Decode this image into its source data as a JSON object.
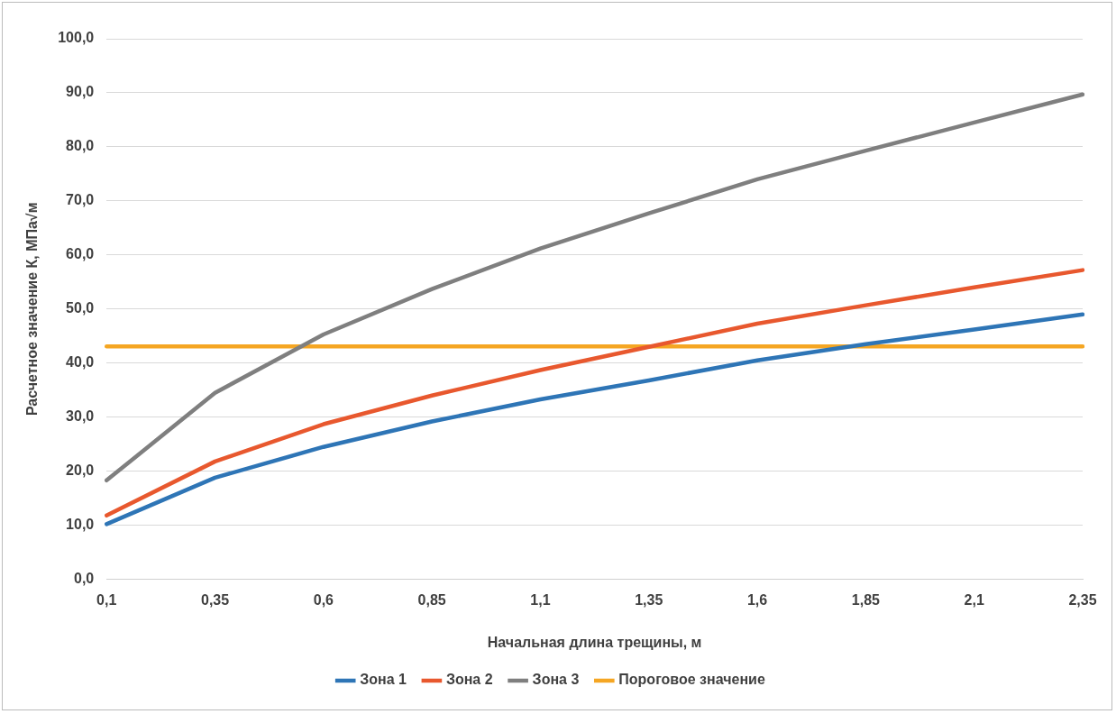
{
  "chart_data": {
    "type": "line",
    "xlabel": "Начальная длина трещины, м",
    "ylabel": "Расчетное значение К, МПа√м",
    "categories": [
      "0,1",
      "0,35",
      "0,6",
      "0,85",
      "1,1",
      "1,35",
      "1,6",
      "1,85",
      "2,1",
      "2,35"
    ],
    "series": [
      {
        "name": "Зона 1",
        "color": "#2e75b6",
        "values": [
          10.2,
          18.8,
          24.5,
          29.2,
          33.3,
          36.8,
          40.5,
          43.5,
          46.2,
          49.0
        ]
      },
      {
        "name": "Зона 2",
        "color": "#e8582e",
        "values": [
          11.8,
          21.8,
          28.7,
          34.0,
          38.7,
          43.0,
          47.3,
          50.7,
          54.0,
          57.2
        ]
      },
      {
        "name": "Зона 3",
        "color": "#7f7f7f",
        "values": [
          18.3,
          34.5,
          45.3,
          53.7,
          61.2,
          67.7,
          74.0,
          79.3,
          84.5,
          89.7
        ]
      },
      {
        "name": "Пороговое значение",
        "color": "#f5a623",
        "values": [
          43.1,
          43.1,
          43.1,
          43.1,
          43.1,
          43.1,
          43.1,
          43.1,
          43.1,
          43.1
        ]
      }
    ],
    "ylim": [
      0,
      100
    ],
    "yticks": [
      {
        "value": 0,
        "label": "0,0"
      },
      {
        "value": 10,
        "label": "10,0"
      },
      {
        "value": 20,
        "label": "20,0"
      },
      {
        "value": 30,
        "label": "30,0"
      },
      {
        "value": 40,
        "label": "40,0"
      },
      {
        "value": 50,
        "label": "50,0"
      },
      {
        "value": 60,
        "label": "60,0"
      },
      {
        "value": 70,
        "label": "70,0"
      },
      {
        "value": 80,
        "label": "80,0"
      },
      {
        "value": 90,
        "label": "90,0"
      },
      {
        "value": 100,
        "label": "100,0"
      }
    ],
    "grid": "y",
    "legend": "bottom",
    "marker": "none",
    "line_style": "solid"
  }
}
